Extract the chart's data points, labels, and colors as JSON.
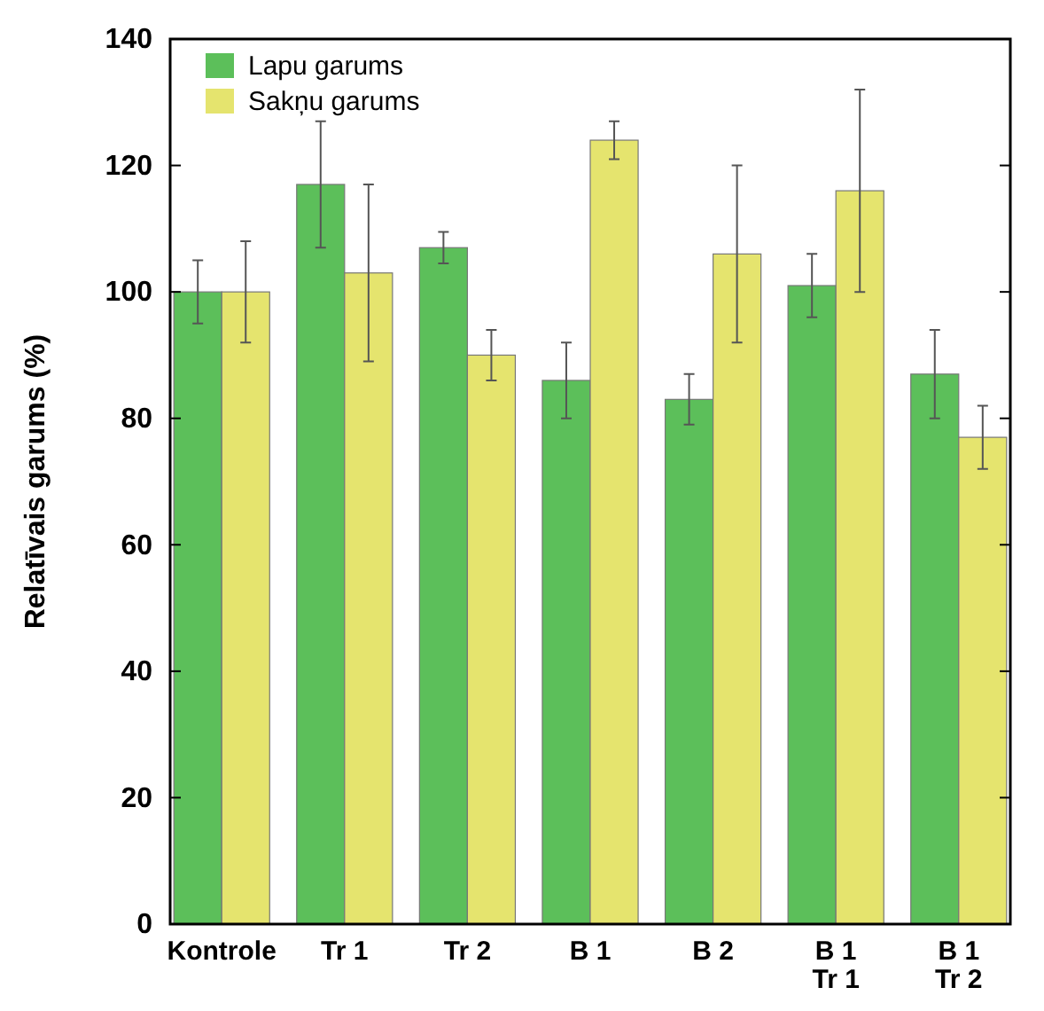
{
  "chart_data": {
    "type": "bar",
    "ylabel": "Relatīvais garums  (%)",
    "categories": [
      "Kontrole",
      "Tr 1",
      "Tr 2",
      "B 1",
      "B 2",
      "B 1\nTr 1",
      "B 1\nTr 2"
    ],
    "series": [
      {
        "name": "Lapu garums",
        "color": "#5cbf5a",
        "values": [
          100,
          117,
          107,
          86,
          83,
          101,
          87
        ],
        "errors": [
          5,
          10,
          2.5,
          6,
          4,
          5,
          7
        ]
      },
      {
        "name": "Sakņu garums",
        "color": "#e5e46e",
        "values": [
          100,
          103,
          90,
          124,
          106,
          116,
          77
        ],
        "errors": [
          8,
          14,
          4,
          3,
          14,
          16,
          5
        ]
      }
    ],
    "ylim": [
      0,
      140
    ],
    "yticks": [
      0,
      20,
      40,
      60,
      80,
      100,
      120,
      140
    ],
    "legend": "top left"
  }
}
